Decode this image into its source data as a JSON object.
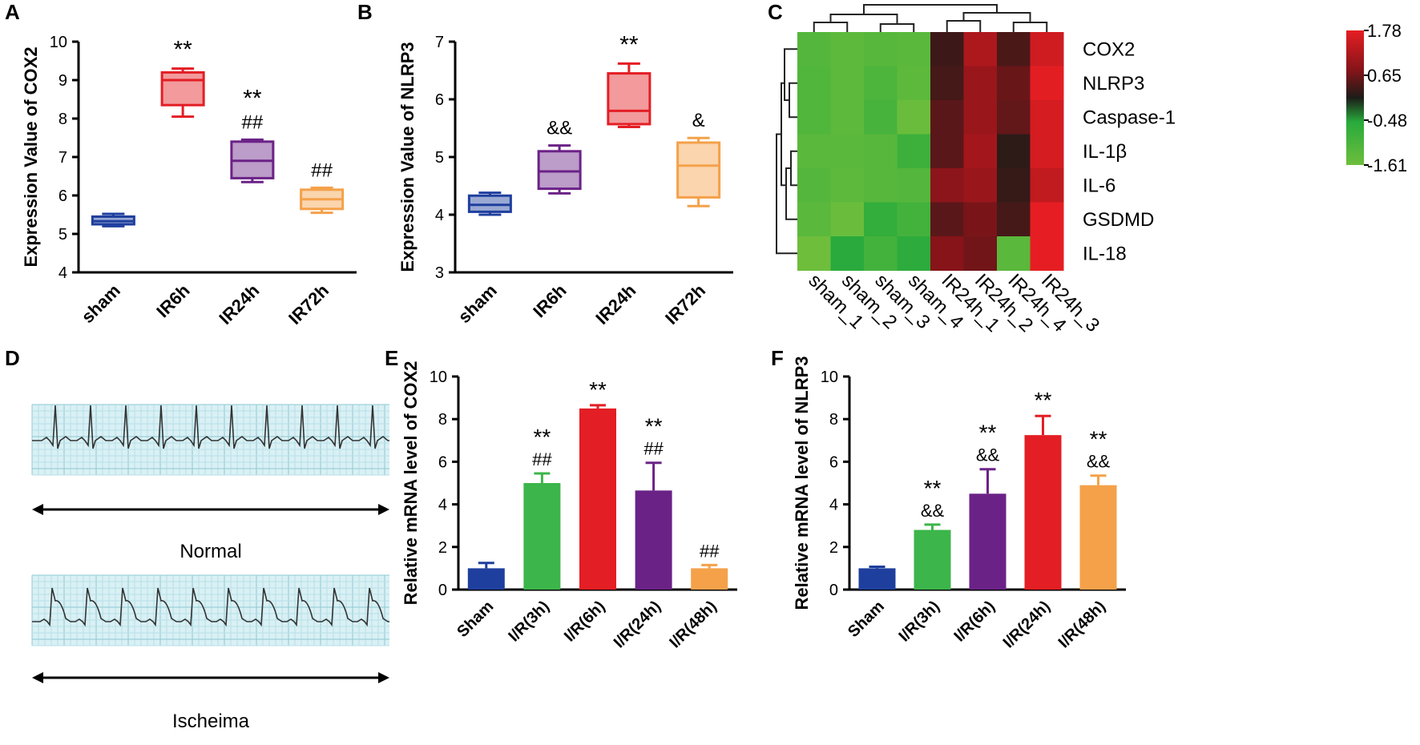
{
  "colors": {
    "blue": "#1f3f9e",
    "red": "#e31e24",
    "purple": "#6b2287",
    "orange": "#f4a14a",
    "green": "#3cb54a",
    "black": "#000000"
  },
  "chart_data": [
    {
      "panel": "A",
      "type": "box",
      "ylabel": "Expression Value of COX2",
      "ylim": [
        4,
        10
      ],
      "yticks": [
        4,
        5,
        6,
        7,
        8,
        9,
        10
      ],
      "categories": [
        "sham",
        "IR6h",
        "IR24h",
        "IR72h"
      ],
      "colors": [
        "blue",
        "red",
        "purple",
        "orange"
      ],
      "boxes": [
        {
          "min": 5.2,
          "q1": 5.25,
          "median": 5.33,
          "q3": 5.45,
          "max": 5.52
        },
        {
          "min": 8.05,
          "q1": 8.35,
          "median": 9.0,
          "q3": 9.2,
          "max": 9.3
        },
        {
          "min": 6.35,
          "q1": 6.45,
          "median": 6.9,
          "q3": 7.4,
          "max": 7.45
        },
        {
          "min": 5.55,
          "q1": 5.65,
          "median": 5.9,
          "q3": 6.15,
          "max": 6.2
        }
      ],
      "annotations": [
        [],
        [
          "**"
        ],
        [
          "**",
          "##"
        ],
        [
          "##"
        ]
      ]
    },
    {
      "panel": "B",
      "type": "box",
      "ylabel": "Expression Value of NLRP3",
      "ylim": [
        3,
        7
      ],
      "yticks": [
        3,
        4,
        5,
        6,
        7
      ],
      "categories": [
        "sham",
        "IR6h",
        "IR24h",
        "IR72h"
      ],
      "colors": [
        "blue",
        "purple",
        "red",
        "orange"
      ],
      "boxes": [
        {
          "min": 4.0,
          "q1": 4.05,
          "median": 4.17,
          "q3": 4.33,
          "max": 4.38
        },
        {
          "min": 4.37,
          "q1": 4.45,
          "median": 4.75,
          "q3": 5.1,
          "max": 5.2
        },
        {
          "min": 5.52,
          "q1": 5.57,
          "median": 5.8,
          "q3": 6.45,
          "max": 6.62
        },
        {
          "min": 4.15,
          "q1": 4.3,
          "median": 4.85,
          "q3": 5.25,
          "max": 5.33
        }
      ],
      "annotations": [
        [],
        [
          "&&"
        ],
        [
          "**"
        ],
        [
          "&"
        ]
      ]
    },
    {
      "panel": "C",
      "type": "heatmap",
      "rows": [
        "COX2",
        "NLRP3",
        "Caspase-1",
        "IL-1β",
        "IL-6",
        "GSDMD",
        "IL-18"
      ],
      "columns": [
        "sham_1",
        "sham_2",
        "sham_3",
        "sham_4",
        "IR24h_1",
        "IR24h_2",
        "IR24h_4",
        "IR24h_3"
      ],
      "values": [
        [
          -1.2,
          -1.35,
          -1.25,
          -1.3,
          0.3,
          1.2,
          0.4,
          1.55
        ],
        [
          -1.15,
          -1.35,
          -1.1,
          -1.35,
          0.35,
          1.0,
          0.6,
          1.75
        ],
        [
          -1.15,
          -1.35,
          -1.0,
          -1.55,
          0.5,
          1.0,
          0.55,
          1.6
        ],
        [
          -1.3,
          -1.3,
          -1.25,
          -0.85,
          0.5,
          1.1,
          0.2,
          1.6
        ],
        [
          -1.2,
          -1.35,
          -1.25,
          -1.2,
          0.85,
          1.0,
          0.25,
          1.4
        ],
        [
          -1.3,
          -1.55,
          -0.7,
          -0.95,
          0.5,
          0.7,
          0.35,
          1.78
        ],
        [
          -1.61,
          -0.55,
          -0.95,
          -0.6,
          0.8,
          0.65,
          -1.3,
          1.78
        ]
      ],
      "scale": {
        "min": -1.61,
        "max": 1.78,
        "labels": [
          "1.78",
          "0.65",
          "-0.48",
          "-1.61"
        ]
      }
    },
    {
      "panel": "E",
      "type": "bar",
      "ylabel": "Relative mRNA level of COX2",
      "ylim": [
        0,
        10
      ],
      "yticks": [
        0,
        2,
        4,
        6,
        8,
        10
      ],
      "categories": [
        "Sham",
        "I/R(3h)",
        "I/R(6h)",
        "I/R(24h)",
        "I/R(48h)"
      ],
      "values": [
        1.0,
        5.0,
        8.5,
        4.65,
        1.0
      ],
      "errors": [
        0.25,
        0.45,
        0.15,
        1.3,
        0.15
      ],
      "colors": [
        "blue",
        "green",
        "red",
        "purple",
        "orange"
      ],
      "annotations": [
        [],
        [
          "**",
          "##"
        ],
        [
          "**"
        ],
        [
          "**",
          "##"
        ],
        [
          "##"
        ]
      ]
    },
    {
      "panel": "F",
      "type": "bar",
      "ylabel": "Relative mRNA level of NLRP3",
      "ylim": [
        0,
        10
      ],
      "yticks": [
        0,
        2,
        4,
        6,
        8,
        10
      ],
      "categories": [
        "Sham",
        "I/R(3h)",
        "I/R(6h)",
        "I/R(24h)",
        "I/R(48h)"
      ],
      "values": [
        1.0,
        2.8,
        4.5,
        7.25,
        4.9
      ],
      "errors": [
        0.07,
        0.25,
        1.15,
        0.9,
        0.45
      ],
      "colors": [
        "blue",
        "green",
        "purple",
        "red",
        "orange"
      ],
      "annotations": [
        [],
        [
          "**",
          "&&"
        ],
        [
          "**",
          "&&"
        ],
        [
          "**"
        ],
        [
          "**",
          "&&"
        ]
      ]
    }
  ],
  "panel_D": {
    "label": "D",
    "normal_label": "Normal",
    "ischemia_label": "Ischeima"
  }
}
